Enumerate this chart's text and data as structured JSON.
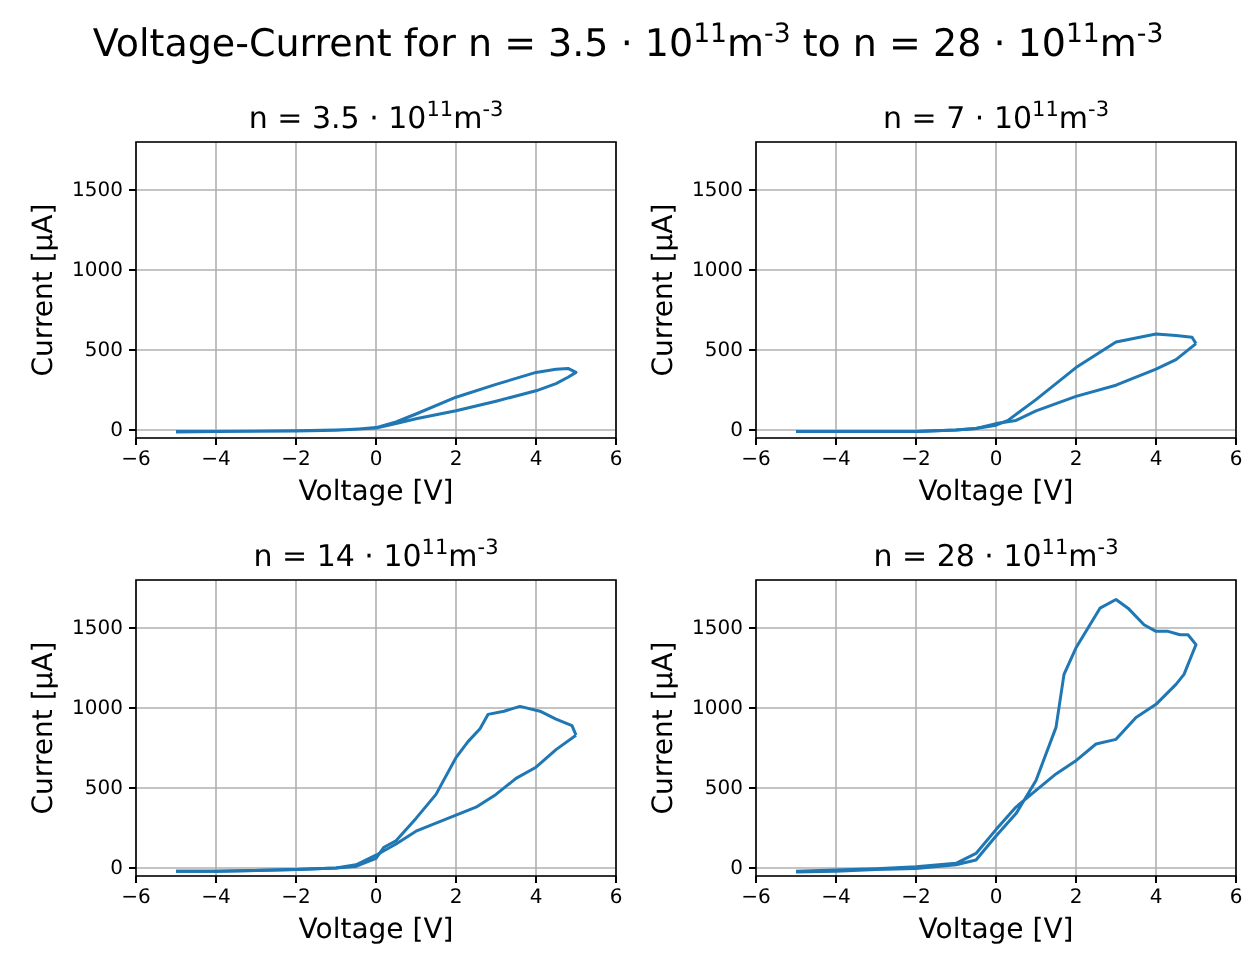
{
  "chart_data": [
    {
      "type": "line",
      "title": "n = 3.5 · 10$^{11}$m$^{-3}$",
      "xlabel": "Voltage [V]",
      "ylabel": "Current [μA]",
      "annotations": [
        "Voltage-Current for n = 3.5 · 10$^{11}$m$^{-3}$ to n = 28 · 10$^{11}$m$^{-3}$"
      ],
      "xlim": [
        -6,
        6
      ],
      "xticks": [
        -6,
        -4,
        -2,
        0,
        2,
        4,
        6
      ],
      "ylim": [
        -50,
        1800
      ],
      "yticks": [
        0,
        500,
        1000,
        1500
      ],
      "grid": true,
      "series": [
        {
          "color": "#1f77b4",
          "x": [
            -5,
            -4,
            -2,
            -1,
            -0.5,
            0,
            0.5,
            1,
            2,
            3,
            4,
            4.5,
            4.8,
            5,
            4.8,
            4.5,
            4,
            3,
            2,
            1,
            0.5,
            0,
            -1,
            -2,
            -4,
            -5
          ],
          "values": [
            -10,
            -10,
            -5,
            0,
            5,
            15,
            50,
            100,
            205,
            285,
            360,
            380,
            385,
            360,
            330,
            290,
            245,
            180,
            120,
            70,
            40,
            12,
            -2,
            -6,
            -10,
            -12
          ]
        }
      ]
    },
    {
      "type": "line",
      "title": "n = 7 · 10$^{11}$m$^{-3}$",
      "xlabel": "Voltage [V]",
      "ylabel": "Current [μA]",
      "xlim": [
        -6,
        6
      ],
      "xticks": [
        -6,
        -4,
        -2,
        0,
        2,
        4,
        6
      ],
      "ylim": [
        -50,
        1800
      ],
      "yticks": [
        0,
        500,
        1000,
        1500
      ],
      "grid": true,
      "series": [
        {
          "color": "#1f77b4",
          "x": [
            -5,
            -4,
            -2,
            -1,
            -0.5,
            0,
            0.3,
            1,
            2,
            3,
            4,
            4.5,
            4.9,
            5
          ],
          "values": [
            -10,
            -10,
            -10,
            0,
            10,
            30,
            60,
            190,
            390,
            550,
            600,
            590,
            580,
            540
          ]
        },
        {
          "color": "#1f77b4",
          "x": [
            5,
            4.5,
            4,
            3,
            2,
            1,
            0.5,
            0,
            -0.5,
            -1,
            -2,
            -4,
            -5
          ],
          "values": [
            540,
            440,
            380,
            280,
            210,
            120,
            60,
            40,
            10,
            0,
            -10,
            -10,
            -10
          ]
        }
      ]
    },
    {
      "type": "line",
      "title": "n = 14 · 10$^{11}$m$^{-3}$",
      "xlabel": "Voltage [V]",
      "ylabel": "Current [μA]",
      "xlim": [
        -6,
        6
      ],
      "xticks": [
        -6,
        -4,
        -2,
        0,
        2,
        4,
        6
      ],
      "ylim": [
        -50,
        1800
      ],
      "yticks": [
        0,
        500,
        1000,
        1500
      ],
      "grid": true,
      "series": [
        {
          "color": "#1f77b4",
          "x": [
            -5,
            -4,
            -2,
            -1,
            -0.5,
            0,
            0.2,
            0.5,
            1,
            1.5,
            2,
            2.3,
            2.6,
            2.8,
            3.2,
            3.6,
            4.1,
            4.5,
            4.9,
            5
          ],
          "values": [
            -20,
            -20,
            -10,
            0,
            10,
            60,
            130,
            170,
            310,
            460,
            690,
            790,
            870,
            960,
            980,
            1010,
            980,
            930,
            890,
            830
          ]
        },
        {
          "color": "#1f77b4",
          "x": [
            5,
            4.5,
            4,
            3.5,
            3,
            2.5,
            2,
            1.5,
            1,
            0.5,
            0,
            -0.5,
            -1,
            -2,
            -4,
            -5
          ],
          "values": [
            830,
            740,
            630,
            560,
            460,
            380,
            330,
            280,
            230,
            150,
            80,
            20,
            0,
            -10,
            -20,
            -20
          ]
        }
      ]
    },
    {
      "type": "line",
      "title": "n = 28 · 10$^{11}$m$^{-3}$",
      "xlabel": "Voltage [V]",
      "ylabel": "Current [μA]",
      "xlim": [
        -6,
        6
      ],
      "xticks": [
        -6,
        -4,
        -2,
        0,
        2,
        4,
        6
      ],
      "ylim": [
        -50,
        1800
      ],
      "yticks": [
        0,
        500,
        1000,
        1500
      ],
      "grid": true,
      "series": [
        {
          "color": "#1f77b4",
          "x": [
            -5,
            -4,
            -3,
            -2,
            -1,
            -0.5,
            0,
            0.5,
            1,
            1.5,
            1.7,
            2,
            2.3,
            2.6,
            3,
            3.3,
            3.7,
            4,
            4.3,
            4.6,
            4.8,
            5,
            4.9,
            4.7,
            4.5,
            4,
            3.5,
            3,
            2.5,
            2,
            1.5,
            1,
            0.5,
            0,
            -0.5,
            -1,
            -2,
            -3,
            -4,
            -5
          ],
          "values": [
            -25,
            -20,
            -10,
            -3,
            20,
            50,
            200,
            340,
            547,
            879,
            1210,
            1376,
            1500,
            1624,
            1678,
            1624,
            1520,
            1479,
            1479,
            1458,
            1458,
            1396,
            1334,
            1210,
            1148,
            1023,
            941,
            804,
            775,
            671,
            588,
            485,
            381,
            240,
            91,
            29,
            8,
            -4,
            -12,
            -21
          ]
        }
      ]
    }
  ]
}
